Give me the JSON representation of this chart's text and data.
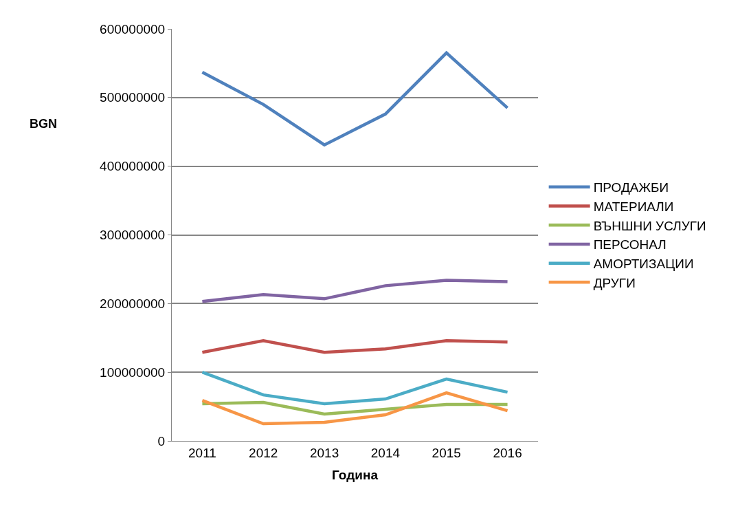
{
  "chart_data": {
    "type": "line",
    "xlabel": "Година",
    "ylabel": "BGN",
    "categories": [
      "2011",
      "2012",
      "2013",
      "2014",
      "2015",
      "2016"
    ],
    "series": [
      {
        "name": "ПРОДАЖБИ",
        "color": "#4f81bd",
        "values": [
          537000000,
          490000000,
          431000000,
          476000000,
          565000000,
          485000000
        ]
      },
      {
        "name": "МАТЕРИАЛИ",
        "color": "#c0504d",
        "values": [
          129000000,
          146000000,
          129000000,
          134000000,
          146000000,
          144000000
        ]
      },
      {
        "name": "ВЪНШНИ УСЛУГИ",
        "color": "#9bbb59",
        "values": [
          54000000,
          56000000,
          39000000,
          46000000,
          53000000,
          53000000
        ]
      },
      {
        "name": "ПЕРСОНАЛ",
        "color": "#8064a2",
        "values": [
          203000000,
          213000000,
          207000000,
          226000000,
          234000000,
          232000000
        ]
      },
      {
        "name": "АМОРТИЗАЦИИ",
        "color": "#4bacc6",
        "values": [
          100000000,
          67000000,
          54000000,
          61000000,
          90000000,
          71000000
        ]
      },
      {
        "name": "ДРУГИ",
        "color": "#f79646",
        "values": [
          59000000,
          25000000,
          27000000,
          38000000,
          70000000,
          44000000
        ]
      }
    ],
    "ylim": [
      0,
      600000000
    ],
    "yticks": [
      0,
      100000000,
      200000000,
      300000000,
      400000000,
      500000000,
      600000000
    ],
    "grid": "y",
    "legend": "right",
    "marker": "none",
    "line_style": "solid"
  }
}
